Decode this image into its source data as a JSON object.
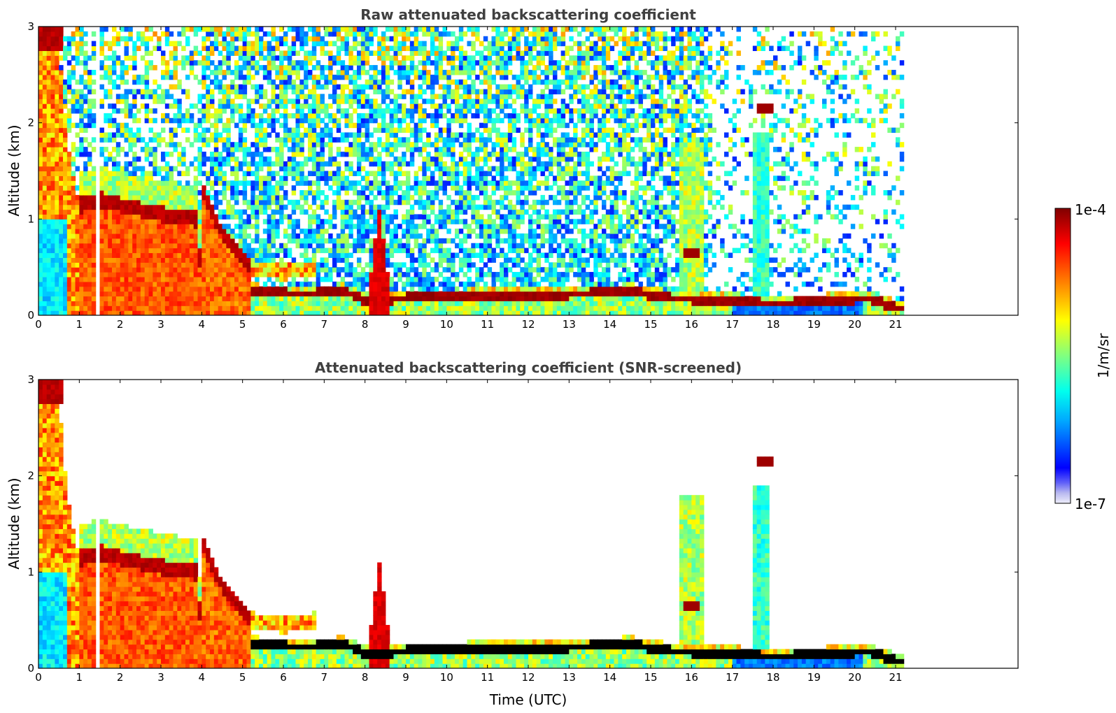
{
  "chart_data": [
    {
      "type": "heatmap",
      "title": "Raw attenuated backscattering coefficient",
      "xlabel": "",
      "ylabel": "Altitude (km)",
      "xlim": [
        0,
        24
      ],
      "ylim": [
        0,
        3
      ],
      "xticks": [
        "0",
        "1",
        "2",
        "3",
        "4",
        "5",
        "6",
        "7",
        "8",
        "9",
        "10",
        "11",
        "12",
        "13",
        "14",
        "15",
        "16",
        "17",
        "18",
        "19",
        "20",
        "21"
      ],
      "yticks": [
        "0",
        "1",
        "2",
        "3"
      ],
      "data_extent_hours": [
        0,
        21.2
      ],
      "features": {
        "boundary_layer_top_km": [
          [
            0,
            2.9
          ],
          [
            0.5,
            2.8
          ],
          [
            0.7,
            1.8
          ],
          [
            1.0,
            1.15
          ],
          [
            1.5,
            1.2
          ],
          [
            3.0,
            1.05
          ],
          [
            3.9,
            1.0
          ],
          [
            4.0,
            0.2
          ],
          [
            5.2,
            0.25
          ],
          [
            6.5,
            0.22
          ],
          [
            7.5,
            0.25
          ],
          [
            8.0,
            0.15
          ],
          [
            9.0,
            0.18
          ],
          [
            11.0,
            0.2
          ],
          [
            13.0,
            0.22
          ],
          [
            14.5,
            0.25
          ],
          [
            15.5,
            0.18
          ],
          [
            17.0,
            0.15
          ],
          [
            18.0,
            0.12
          ],
          [
            19.5,
            0.15
          ],
          [
            20.3,
            0.18
          ],
          [
            21.0,
            0.08
          ]
        ],
        "residual_layer_km": [
          [
            4.0,
            1.3
          ],
          [
            4.5,
            0.85
          ],
          [
            5.2,
            0.5
          ],
          [
            6.0,
            0.45
          ],
          [
            6.8,
            0.5
          ]
        ],
        "plume_8_5h_top_km": 1.1,
        "elevated_clouds": [
          {
            "time_h": 17.8,
            "altitude_km": 2.15
          },
          {
            "time_h": 16.0,
            "altitude_km": 0.65
          }
        ]
      }
    },
    {
      "type": "heatmap",
      "title": "Attenuated backscattering coefficient (SNR-screened)",
      "xlabel": "Time (UTC)",
      "ylabel": "Altitude (km)",
      "xlim": [
        0,
        24
      ],
      "ylim": [
        0,
        3
      ],
      "xticks": [
        "0",
        "1",
        "2",
        "3",
        "4",
        "5",
        "6",
        "7",
        "8",
        "9",
        "10",
        "11",
        "12",
        "13",
        "14",
        "15",
        "16",
        "17",
        "18",
        "19",
        "20",
        "21"
      ],
      "yticks": [
        "0",
        "1",
        "2",
        "3"
      ],
      "data_extent_hours": [
        0,
        21.2
      ]
    }
  ],
  "colorbar": {
    "label": "1/m/sr",
    "max_label": "1e-4",
    "min_label": "1e-7",
    "scale": "log",
    "colormap": "jet",
    "colors": [
      "#e8e8f8",
      "#b8b8f0",
      "#0000ff",
      "#00a0ff",
      "#00ffff",
      "#80ff80",
      "#ffff00",
      "#ff8000",
      "#ff0000",
      "#800000"
    ]
  }
}
